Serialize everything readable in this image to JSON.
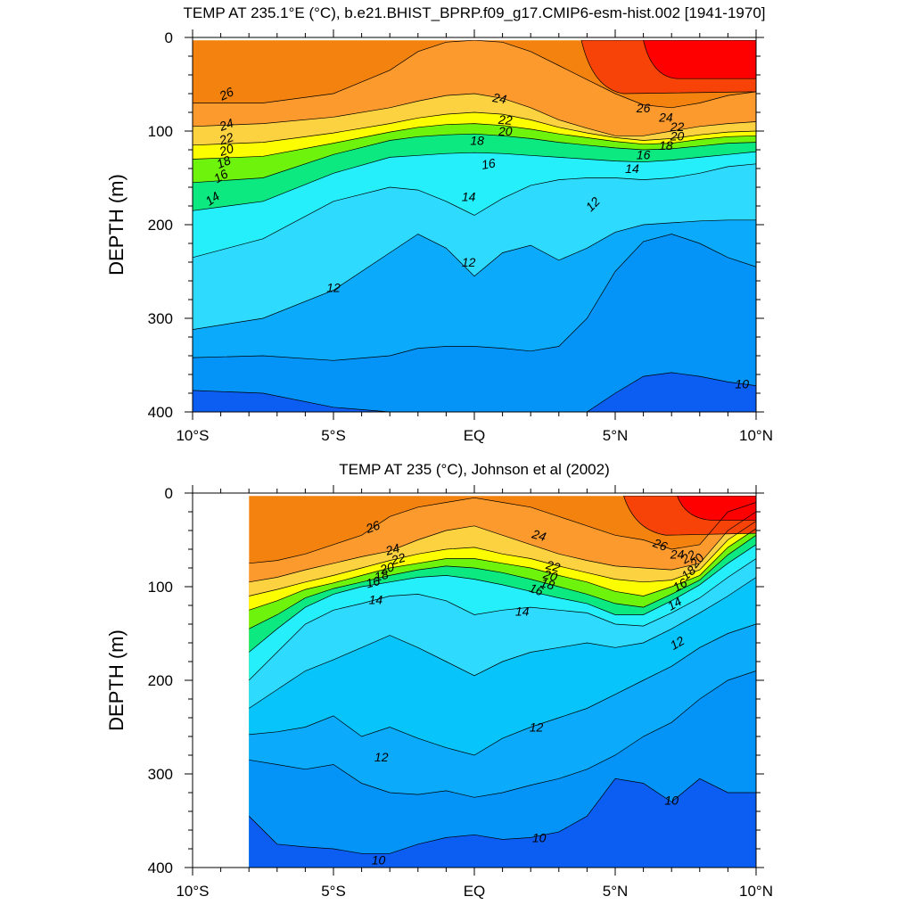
{
  "chart_data": [
    {
      "type": "contour",
      "title": "TEMP AT 235.1°E (°C), b.e21.BHIST_BPRP.f09_g17.CMIP6-esm-hist.002 [1941-1970]",
      "xlabel": "",
      "ylabel": "DEPTH (m)",
      "x_ticks": [
        "10°S",
        "5°S",
        "EQ",
        "5°N",
        "10°N"
      ],
      "y_ticks": [
        "0",
        "100",
        "200",
        "300",
        "400"
      ],
      "xlim": [
        -10,
        10
      ],
      "ylim": [
        0,
        400
      ],
      "y_reversed": true,
      "data_xrange": [
        -10,
        10
      ],
      "contour_levels": [
        10,
        11,
        12,
        13,
        14,
        15,
        16,
        17,
        18,
        19,
        20,
        21,
        22,
        23,
        24,
        25,
        26,
        27,
        28
      ],
      "isotherm_depths": {
        "x": [
          -10,
          -7.5,
          -5,
          -3,
          -2,
          -1,
          0,
          1,
          2,
          3,
          4,
          5,
          6,
          7,
          8,
          9,
          10
        ],
        "levels": [
          {
            "t": 26,
            "d": [
              70,
              70,
              60,
              35,
              15,
              5,
              0,
              5,
              15,
              30,
              45,
              60,
              72,
              75,
              70,
              62,
              58
            ]
          },
          {
            "t": 24,
            "d": [
              95,
              92,
              85,
              75,
              68,
              62,
              60,
              65,
              75,
              88,
              97,
              105,
              105,
              100,
              95,
              92,
              90
            ]
          },
          {
            "t": 22,
            "d": [
              115,
              112,
              102,
              92,
              86,
              82,
              80,
              82,
              88,
              96,
              102,
              107,
              110,
              108,
              104,
              101,
              100
            ]
          },
          {
            "t": 20,
            "d": [
              130,
              127,
              113,
              101,
              96,
              93,
              92,
              94,
              98,
              103,
              107,
              111,
              114,
              113,
              109,
              106,
              105
            ]
          },
          {
            "t": 18,
            "d": [
              155,
              150,
              125,
              110,
              106,
              104,
              103,
              105,
              108,
              112,
              115,
              118,
              120,
              119,
              116,
              113,
              112
            ]
          },
          {
            "t": 16,
            "d": [
              185,
              175,
              145,
              128,
              126,
              124,
              123,
              124,
              126,
              128,
              130,
              132,
              133,
              131,
              128,
              125,
              122
            ]
          },
          {
            "t": 14,
            "d": [
              235,
              215,
              175,
              160,
              163,
              175,
              190,
              172,
              158,
              152,
              150,
              150,
              152,
              150,
              145,
              138,
              135
            ]
          },
          {
            "t": 12,
            "d": [
              312,
              300,
              270,
              230,
              210,
              225,
              255,
              230,
              222,
              238,
              225,
              208,
              200,
              198,
              196,
              195,
              195
            ]
          },
          {
            "t": 11,
            "d": [
              342,
              340,
              345,
              340,
              332,
              330,
              330,
              332,
              335,
              330,
              300,
              250,
              218,
              210,
              220,
              235,
              245
            ]
          },
          {
            "t": 10,
            "d": [
              377,
              380,
              395,
              405,
              410,
              410,
              405,
              403,
              405,
              410,
              400,
              380,
              362,
              358,
              362,
              368,
              372
            ]
          }
        ]
      },
      "labels": [
        {
          "text": "26",
          "x": -8.8,
          "d": 60,
          "rot": -25
        },
        {
          "text": "24",
          "x": -8.8,
          "d": 93,
          "rot": -20
        },
        {
          "text": "22",
          "x": -8.8,
          "d": 108,
          "rot": -18
        },
        {
          "text": "20",
          "x": -8.8,
          "d": 120,
          "rot": -18
        },
        {
          "text": "18",
          "x": -8.9,
          "d": 133,
          "rot": -22
        },
        {
          "text": "16",
          "x": -9.0,
          "d": 148,
          "rot": -30
        },
        {
          "text": "14",
          "x": -9.3,
          "d": 172,
          "rot": -35
        },
        {
          "text": "24",
          "x": 0.9,
          "d": 65,
          "rot": 10
        },
        {
          "text": "22",
          "x": 1.1,
          "d": 88,
          "rot": 5
        },
        {
          "text": "20",
          "x": 1.1,
          "d": 100,
          "rot": 0
        },
        {
          "text": "18",
          "x": 0.1,
          "d": 110,
          "rot": 0
        },
        {
          "text": "16",
          "x": 0.5,
          "d": 135,
          "rot": -10
        },
        {
          "text": "14",
          "x": -0.2,
          "d": 170,
          "rot": 0
        },
        {
          "text": "12",
          "x": -0.2,
          "d": 240,
          "rot": 0
        },
        {
          "text": "26",
          "x": 6.0,
          "d": 75,
          "rot": 0
        },
        {
          "text": "24",
          "x": 6.8,
          "d": 85,
          "rot": 0
        },
        {
          "text": "22",
          "x": 7.2,
          "d": 95,
          "rot": 0
        },
        {
          "text": "20",
          "x": 7.2,
          "d": 105,
          "rot": 0
        },
        {
          "text": "18",
          "x": 6.8,
          "d": 115,
          "rot": 0
        },
        {
          "text": "16",
          "x": 6.0,
          "d": 125,
          "rot": 0
        },
        {
          "text": "14",
          "x": 5.6,
          "d": 140,
          "rot": 0
        },
        {
          "text": "12",
          "x": 4.2,
          "d": 178,
          "rot": -45
        },
        {
          "text": "12",
          "x": -5.0,
          "d": 267,
          "rot": 0
        },
        {
          "text": "10",
          "x": 9.5,
          "d": 370,
          "rot": 0
        }
      ]
    },
    {
      "type": "contour",
      "title": "TEMP AT 235 (°C), Johnson et al (2002)",
      "xlabel": "",
      "ylabel": "DEPTH (m)",
      "x_ticks": [
        "10°S",
        "5°S",
        "EQ",
        "5°N",
        "10°N"
      ],
      "y_ticks": [
        "0",
        "100",
        "200",
        "300",
        "400"
      ],
      "xlim": [
        -10,
        10
      ],
      "ylim": [
        0,
        400
      ],
      "y_reversed": true,
      "data_xrange": [
        -8,
        10
      ],
      "contour_levels": [
        10,
        11,
        12,
        13,
        14,
        15,
        16,
        17,
        18,
        19,
        20,
        21,
        22,
        23,
        24,
        25,
        26,
        27,
        28
      ],
      "isotherm_depths": {
        "x": [
          -8,
          -7,
          -6,
          -5,
          -4,
          -3,
          -2,
          -1,
          0,
          1,
          2,
          3,
          4,
          5,
          6,
          7,
          8,
          9,
          10
        ],
        "levels": [
          {
            "t": 26,
            "d": [
              75,
              72,
              65,
              55,
              45,
              25,
              15,
              10,
              5,
              10,
              15,
              25,
              35,
              45,
              50,
              60,
              55,
              20,
              10
            ]
          },
          {
            "t": 24,
            "d": [
              95,
              90,
              82,
              75,
              68,
              62,
              50,
              40,
              35,
              45,
              55,
              65,
              72,
              78,
              80,
              82,
              75,
              40,
              20
            ]
          },
          {
            "t": 22,
            "d": [
              110,
              103,
              95,
              88,
              80,
              72,
              65,
              60,
              58,
              65,
              70,
              78,
              85,
              92,
              95,
              93,
              82,
              50,
              30
            ]
          },
          {
            "t": 20,
            "d": [
              125,
              115,
              103,
              96,
              88,
              80,
              75,
              70,
              70,
              75,
              80,
              88,
              95,
              105,
              110,
              100,
              88,
              58,
              38
            ]
          },
          {
            "t": 18,
            "d": [
              145,
              130,
              112,
              102,
              95,
              88,
              82,
              78,
              80,
              85,
              92,
              100,
              108,
              118,
              122,
              108,
              93,
              66,
              45
            ]
          },
          {
            "t": 16,
            "d": [
              170,
              145,
              122,
              108,
              100,
              95,
              90,
              88,
              92,
              98,
              105,
              112,
              118,
              130,
              130,
              115,
              98,
              75,
              55
            ]
          },
          {
            "t": 14,
            "d": [
              200,
              170,
              140,
              125,
              118,
              110,
              108,
              115,
              130,
              125,
              122,
              125,
              128,
              140,
              142,
              128,
              112,
              90,
              70
            ]
          },
          {
            "t": 13,
            "d": [
              230,
              210,
              190,
              178,
              165,
              152,
              165,
              180,
              195,
              180,
              170,
              165,
              160,
              165,
              160,
              145,
              128,
              110,
              90
            ]
          },
          {
            "t": 12,
            "d": [
              258,
              255,
              250,
              238,
              260,
              250,
              262,
              272,
              280,
              262,
              250,
              240,
              230,
              215,
              200,
              185,
              165,
              150,
              140
            ]
          },
          {
            "t": 11,
            "d": [
              285,
              290,
              295,
              290,
              310,
              320,
              322,
              318,
              325,
              320,
              312,
              305,
              295,
              280,
              260,
              245,
              220,
              200,
              190
            ]
          },
          {
            "t": 10,
            "d": [
              345,
              375,
              378,
              380,
              385,
              385,
              375,
              368,
              365,
              370,
              368,
              362,
              345,
              305,
              310,
              330,
              305,
              320,
              320
            ]
          }
        ]
      },
      "labels": [
        {
          "text": "26",
          "x": -3.6,
          "d": 36,
          "rot": -20
        },
        {
          "text": "24",
          "x": -2.9,
          "d": 60,
          "rot": -15
        },
        {
          "text": "22",
          "x": -2.7,
          "d": 70,
          "rot": -15
        },
        {
          "text": "20",
          "x": -3.1,
          "d": 80,
          "rot": -15
        },
        {
          "text": "18",
          "x": -3.3,
          "d": 88,
          "rot": -15
        },
        {
          "text": "16",
          "x": -3.6,
          "d": 95,
          "rot": -15
        },
        {
          "text": "14",
          "x": -3.5,
          "d": 114,
          "rot": 0
        },
        {
          "text": "24",
          "x": 2.3,
          "d": 45,
          "rot": 15
        },
        {
          "text": "22",
          "x": 2.8,
          "d": 78,
          "rot": 15
        },
        {
          "text": "20",
          "x": 2.7,
          "d": 88,
          "rot": 15
        },
        {
          "text": "18",
          "x": 2.6,
          "d": 97,
          "rot": 15
        },
        {
          "text": "16",
          "x": 2.2,
          "d": 103,
          "rot": 20
        },
        {
          "text": "14",
          "x": 1.7,
          "d": 126,
          "rot": 0
        },
        {
          "text": "26",
          "x": 6.6,
          "d": 55,
          "rot": 20
        },
        {
          "text": "24",
          "x": 7.2,
          "d": 65,
          "rot": 0
        },
        {
          "text": "22",
          "x": 7.6,
          "d": 68,
          "rot": -30
        },
        {
          "text": "20",
          "x": 7.9,
          "d": 72,
          "rot": -50
        },
        {
          "text": "18",
          "x": 7.6,
          "d": 85,
          "rot": -40
        },
        {
          "text": "16",
          "x": 7.3,
          "d": 98,
          "rot": -30
        },
        {
          "text": "14",
          "x": 7.1,
          "d": 118,
          "rot": -30
        },
        {
          "text": "12",
          "x": 7.2,
          "d": 160,
          "rot": -30
        },
        {
          "text": "12",
          "x": 2.2,
          "d": 250,
          "rot": 0
        },
        {
          "text": "12",
          "x": -3.3,
          "d": 282,
          "rot": 0
        },
        {
          "text": "10",
          "x": 7.0,
          "d": 328,
          "rot": 0
        },
        {
          "text": "10",
          "x": 2.3,
          "d": 368,
          "rot": 0
        },
        {
          "text": "10",
          "x": -3.4,
          "d": 392,
          "rot": 0
        }
      ]
    }
  ],
  "colors": {
    "t28": "#ff0000",
    "t27": "#f74308",
    "t26": "#f4820f",
    "t24": "#fd9a2e",
    "t23": "#fcb43c",
    "t22": "#fdd240",
    "t21": "#f5ed3e",
    "t20": "#fdfd01",
    "t19": "#b6f10c",
    "t18": "#6ef30d",
    "t17": "#0af20a",
    "t16": "#0de981",
    "t15": "#00f9d5",
    "t14": "#25effa",
    "t13": "#2fdaff",
    "t12": "#07c4fb",
    "t11": "#0baafa",
    "t10": "#0494f8",
    "tlow": "#0c5df2"
  }
}
